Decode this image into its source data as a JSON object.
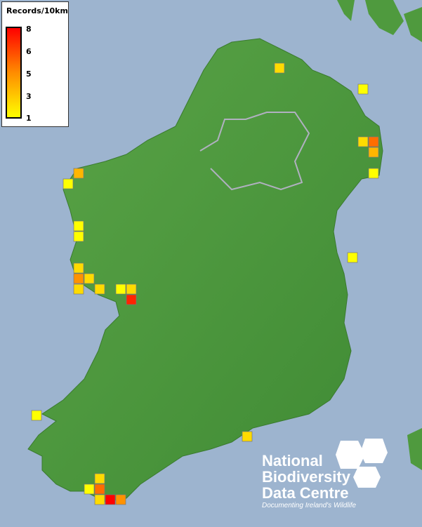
{
  "legend": {
    "title": "Records/10km",
    "ticks": [
      "8",
      "6",
      "5",
      "3",
      "1"
    ],
    "color_low": "#ffff00",
    "color_high": "#ff0000"
  },
  "logo": {
    "line1": "National",
    "line2": "Biodiversity",
    "line3": "Data Centre",
    "tagline": "Documenting Ireland's Wildlife"
  },
  "colors": {
    "sea": "#9db4cf",
    "land": "#4f9a3e"
  },
  "records": [
    2,
    1,
    2,
    5,
    3,
    1,
    3,
    1,
    1,
    1,
    2,
    4,
    2,
    2,
    2,
    1,
    2,
    7,
    1,
    1,
    2,
    2,
    1,
    5,
    2,
    8,
    4
  ]
}
